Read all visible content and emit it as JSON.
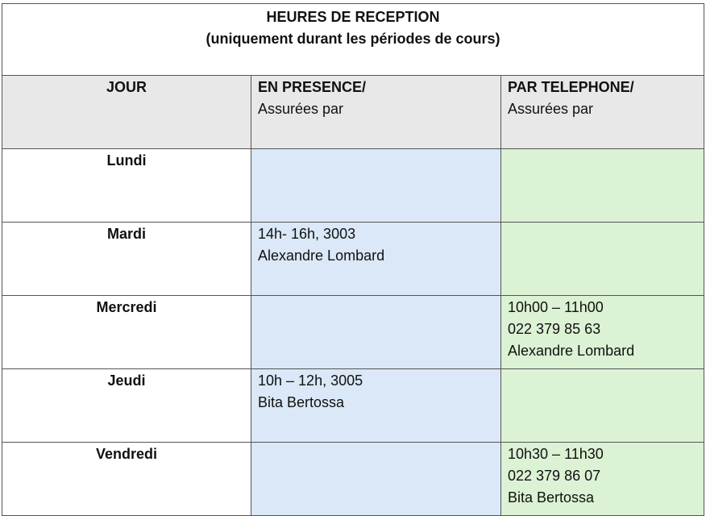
{
  "title": {
    "line1": "HEURES DE RECEPTION",
    "line2": "(uniquement durant les périodes de cours)"
  },
  "headers": {
    "day": "JOUR",
    "presence": {
      "title": "EN PRESENCE/",
      "sub": "Assurées par"
    },
    "phone": {
      "title": "PAR TELEPHONE/",
      "sub": "Assurées par"
    }
  },
  "colors": {
    "header": "#e8e8e8",
    "presence": "#dae8f7",
    "phone": "#dbf2d4"
  },
  "rows": [
    {
      "day": "Lundi",
      "presence": [],
      "phone": []
    },
    {
      "day": "Mardi",
      "presence": [
        "14h- 16h, 3003",
        "Alexandre Lombard"
      ],
      "phone": []
    },
    {
      "day": "Mercredi",
      "presence": [],
      "phone": [
        "10h00 – 11h00",
        "022 379 85 63",
        "Alexandre Lombard"
      ]
    },
    {
      "day": "Jeudi",
      "presence": [
        "10h – 12h, 3005",
        "Bita Bertossa"
      ],
      "phone": []
    },
    {
      "day": "Vendredi",
      "presence": [],
      "phone": [
        "10h30 – 11h30",
        "022 379 86 07",
        "Bita Bertossa"
      ]
    }
  ]
}
